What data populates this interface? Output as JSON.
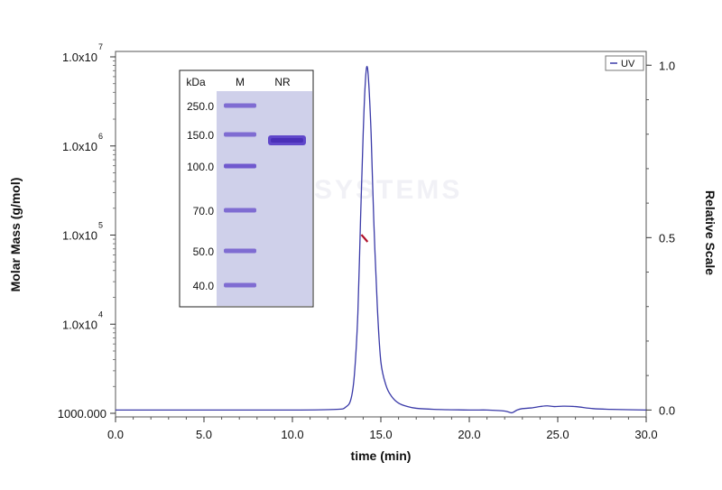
{
  "chart_data": {
    "type": "line",
    "xlabel": "time (min)",
    "ylabel_left": "Molar Mass (g/mol)",
    "ylabel_right": "Relative Scale",
    "xlim": [
      0,
      30
    ],
    "x_ticks": [
      "0.0",
      "5.0",
      "10.0",
      "15.0",
      "20.0",
      "25.0",
      "30.0"
    ],
    "x_tick_values": [
      0,
      5,
      10,
      15,
      20,
      25,
      30
    ],
    "ylim_right": [
      -0.02,
      1.04
    ],
    "y_right_ticks": [
      "0.0",
      "0.5",
      "1.0"
    ],
    "y_right_tick_values": [
      0,
      0.5,
      1.0
    ],
    "y_left_scale": "log",
    "y_left_ticks": [
      {
        "label": "1000.000",
        "mantissa": "",
        "exponent": "",
        "value": 1000
      },
      {
        "label": "1.0x10",
        "mantissa": "1.0x10",
        "exponent": "4",
        "value": 10000
      },
      {
        "label": "1.0x10",
        "mantissa": "1.0x10",
        "exponent": "5",
        "value": 100000
      },
      {
        "label": "1.0x10",
        "mantissa": "1.0x10",
        "exponent": "6",
        "value": 1000000
      },
      {
        "label": "1.0x10",
        "mantissa": "1.0x10",
        "exponent": "7",
        "value": 10000000
      }
    ],
    "legend": {
      "position": "top-right",
      "entries": [
        "UV"
      ]
    },
    "grid": false,
    "series": [
      {
        "name": "UV",
        "axis": "right",
        "color": "#3a3aa8",
        "x": [
          0.0,
          5.0,
          10.0,
          12.5,
          13.0,
          13.3,
          13.5,
          13.7,
          13.85,
          14.0,
          14.1,
          14.2,
          14.3,
          14.45,
          14.6,
          14.8,
          15.0,
          15.3,
          15.6,
          16.0,
          16.5,
          17.0,
          18.0,
          20.0,
          21.0,
          22.0,
          22.4,
          22.7,
          23.0,
          23.5,
          24.0,
          24.4,
          24.8,
          25.3,
          26.0,
          27.0,
          28.0,
          30.0
        ],
        "y": [
          0.0,
          0.0,
          0.0,
          0.002,
          0.008,
          0.03,
          0.1,
          0.28,
          0.55,
          0.8,
          0.93,
          0.995,
          0.96,
          0.8,
          0.55,
          0.3,
          0.14,
          0.07,
          0.04,
          0.02,
          0.01,
          0.005,
          0.002,
          0.0,
          0.0,
          -0.003,
          -0.008,
          0.0,
          0.004,
          0.006,
          0.01,
          0.012,
          0.01,
          0.011,
          0.01,
          0.004,
          0.002,
          0.0
        ]
      },
      {
        "name": "Molar Mass",
        "axis": "left",
        "color": "#b0102a",
        "x": [
          13.9,
          14.25
        ],
        "y": [
          101000,
          84000
        ]
      }
    ]
  },
  "inset_gel": {
    "header_kda": "kDa",
    "lane_marker": "M",
    "lane_sample": "NR",
    "ladder_labels": [
      "250.0",
      "150.0",
      "100.0",
      "70.0",
      "50.0",
      "40.0"
    ],
    "colors": {
      "gel_background": "#cfd0ea",
      "band": "#5a3fc8",
      "band_dark": "#4a2fb8"
    }
  },
  "watermark": "ACROSYSTEMS"
}
